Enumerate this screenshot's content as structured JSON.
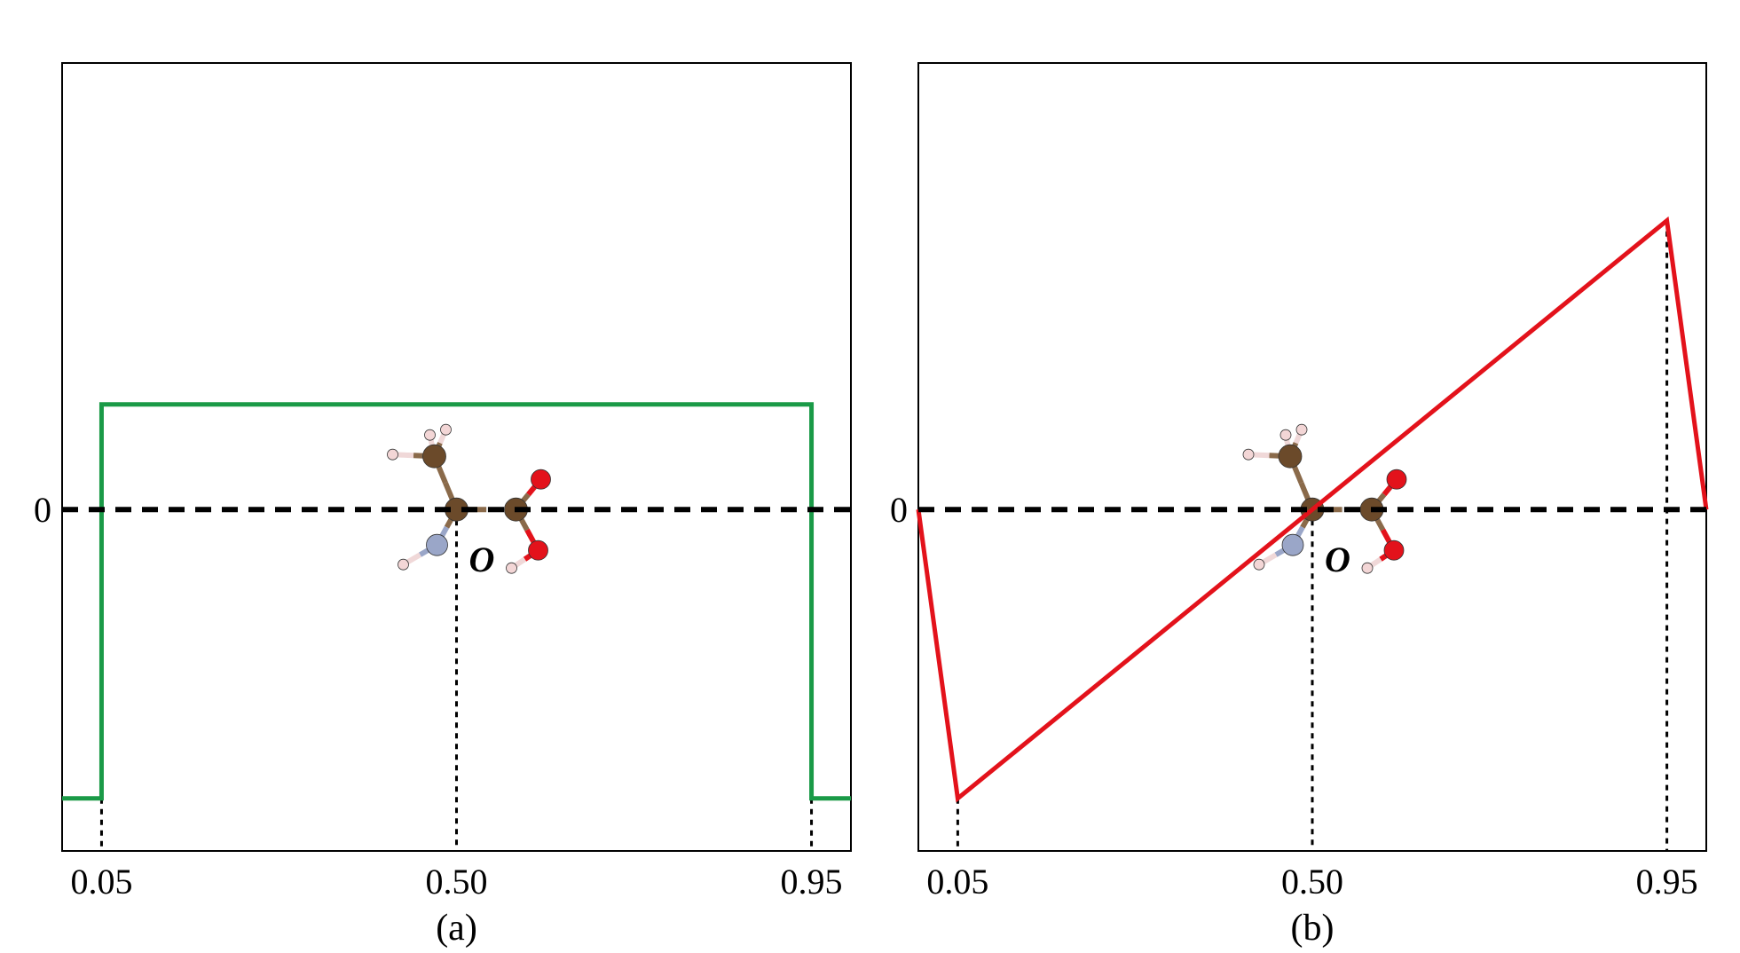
{
  "chart_data": [
    {
      "type": "line",
      "panel_label": "(a)",
      "title": "",
      "xlabel": "",
      "ylabel": "",
      "xlim": [
        0.0,
        1.0
      ],
      "ylim": [
        -1.3,
        1.7
      ],
      "x_tick_values": [
        0.05,
        0.5,
        0.95
      ],
      "x_tick_labels": [
        "0.05",
        "0.50",
        "0.95"
      ],
      "y_tick_values": [
        0
      ],
      "y_tick_labels": [
        "0"
      ],
      "grid": false,
      "zero_line": true,
      "origin_label": "O",
      "origin_x": 0.5,
      "guide_lines_x": [
        0.05,
        0.5,
        0.95
      ],
      "series": [
        {
          "color": "#1a9a47",
          "x": [
            0.0,
            0.05,
            0.05,
            0.95,
            0.95,
            1.0
          ],
          "y": [
            -1.1,
            -1.1,
            0.4,
            0.4,
            -1.1,
            -1.1
          ]
        }
      ]
    },
    {
      "type": "line",
      "panel_label": "(b)",
      "title": "",
      "xlabel": "",
      "ylabel": "",
      "xlim": [
        0.0,
        1.0
      ],
      "ylim": [
        -1.3,
        1.7
      ],
      "x_tick_values": [
        0.05,
        0.5,
        0.95
      ],
      "x_tick_labels": [
        "0.05",
        "0.50",
        "0.95"
      ],
      "y_tick_values": [
        0
      ],
      "y_tick_labels": [
        "0"
      ],
      "grid": false,
      "zero_line": true,
      "origin_label": "O",
      "origin_x": 0.5,
      "guide_lines_x": [
        0.05,
        0.5,
        0.95
      ],
      "series": [
        {
          "color": "#e3121b",
          "x": [
            0.0,
            0.05,
            0.95,
            1.0
          ],
          "y": [
            0.0,
            -1.1,
            1.1,
            0.0
          ]
        }
      ]
    }
  ]
}
